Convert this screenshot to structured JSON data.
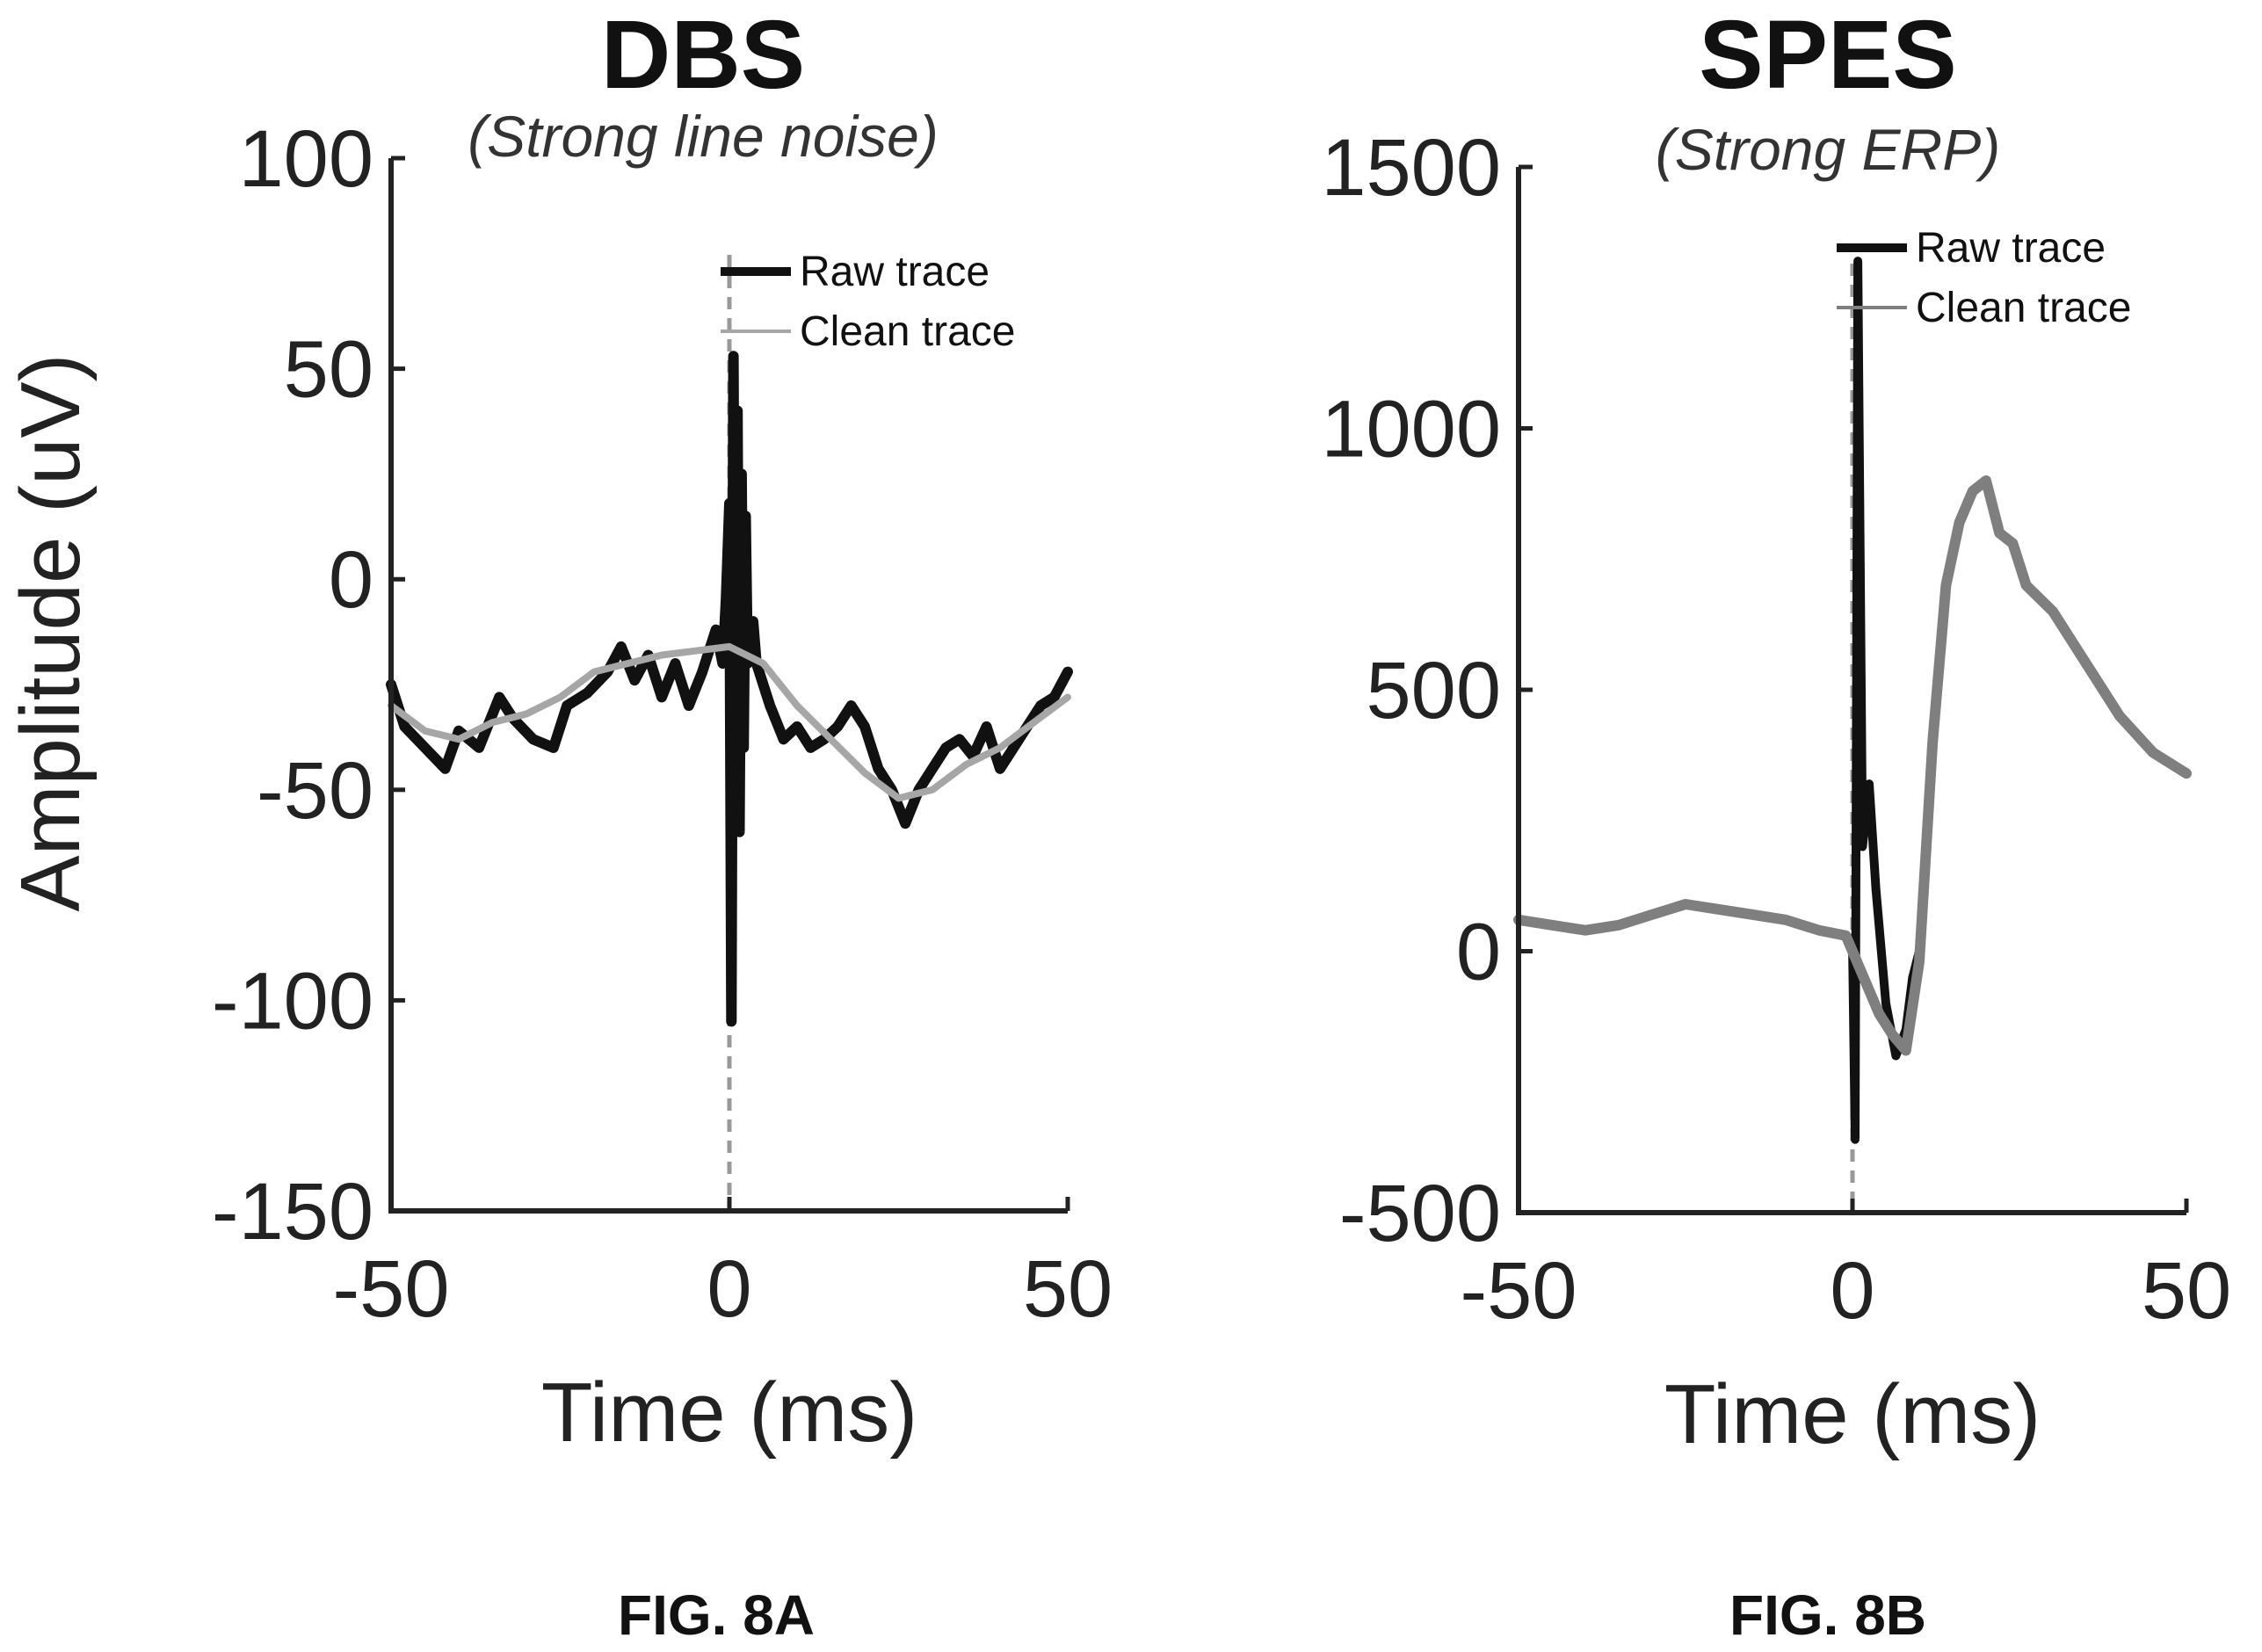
{
  "chart_data": [
    {
      "type": "line",
      "title": "DBS",
      "subtitle": "(Strong line noise)",
      "xlabel": "Time (ms)",
      "ylabel": "Amplitude (uV)",
      "xlim": [
        -50,
        50
      ],
      "ylim": [
        -150,
        100
      ],
      "xticks": [
        "-50",
        "0",
        "50"
      ],
      "yticks": [
        "-150",
        "-100",
        "-50",
        "0",
        "50",
        "100"
      ],
      "legend_placement": "top-right",
      "caption": "FIG. 8A",
      "stim_marker_x": 0,
      "series": [
        {
          "name": "Raw trace",
          "color": "#111111",
          "x": [
            -50,
            -48,
            -45,
            -42,
            -40,
            -37,
            -34,
            -32,
            -29,
            -26,
            -24,
            -21,
            -18,
            -16,
            -14,
            -12,
            -10,
            -8,
            -6,
            -4,
            -2,
            -1,
            -0.5,
            0,
            0.3,
            0.6,
            0.9,
            1.2,
            1.5,
            1.8,
            2.1,
            2.4,
            2.7,
            3,
            3.5,
            4,
            6,
            8,
            10,
            12,
            14,
            16,
            18,
            20,
            22,
            24,
            26,
            28,
            30,
            32,
            34,
            36,
            38,
            40,
            42,
            44,
            46,
            48,
            50
          ],
          "y": [
            -25,
            -35,
            -40,
            -45,
            -36,
            -40,
            -28,
            -33,
            -38,
            -40,
            -30,
            -27,
            -22,
            -16,
            -24,
            -18,
            -28,
            -20,
            -30,
            -22,
            -12,
            -20,
            -5,
            18,
            -105,
            53,
            -55,
            40,
            -60,
            25,
            -40,
            15,
            -20,
            -15,
            -10,
            -20,
            -30,
            -38,
            -35,
            -40,
            -38,
            -35,
            -30,
            -35,
            -45,
            -50,
            -58,
            -50,
            -45,
            -40,
            -38,
            -42,
            -35,
            -45,
            -40,
            -35,
            -30,
            -28,
            -22
          ],
          "values_label": ""
        },
        {
          "name": "Clean trace",
          "color": "#a6a6a6",
          "x": [
            -50,
            -45,
            -40,
            -35,
            -30,
            -25,
            -20,
            -15,
            -10,
            -5,
            0,
            5,
            10,
            15,
            20,
            25,
            30,
            35,
            40,
            45,
            50
          ],
          "y": [
            -30,
            -36,
            -38,
            -34,
            -32,
            -28,
            -22,
            -20,
            -18,
            -17,
            -16,
            -20,
            -30,
            -38,
            -46,
            -52,
            -50,
            -44,
            -40,
            -34,
            -28
          ],
          "values_label": ""
        }
      ]
    },
    {
      "type": "line",
      "title": "SPES",
      "subtitle": "(Strong ERP)",
      "xlabel": "Time (ms)",
      "ylabel": "",
      "xlim": [
        -50,
        50
      ],
      "ylim": [
        -500,
        1500
      ],
      "xticks": [
        "-50",
        "0",
        "50"
      ],
      "yticks": [
        "-500",
        "0",
        "500",
        "1000",
        "1500"
      ],
      "legend_placement": "top-right",
      "caption": "FIG. 8B",
      "stim_marker_x": 0,
      "series": [
        {
          "name": "Raw trace",
          "color": "#111111",
          "x": [
            -50,
            -45,
            -40,
            -35,
            -30,
            -25,
            -20,
            -15,
            -10,
            -5,
            -1,
            0,
            0.4,
            0.8,
            1.5,
            2.5,
            3.5,
            5,
            6.5,
            8,
            9,
            10
          ],
          "y": [
            60,
            50,
            40,
            50,
            70,
            90,
            80,
            70,
            60,
            40,
            30,
            20,
            -360,
            1320,
            200,
            320,
            120,
            -100,
            -200,
            -150,
            -50,
            0
          ],
          "values_label": ""
        },
        {
          "name": "Clean trace",
          "color": "#7f7f7f",
          "x": [
            -50,
            -45,
            -40,
            -35,
            -30,
            -25,
            -20,
            -15,
            -10,
            -5,
            -1,
            0,
            2,
            4,
            6,
            8,
            10,
            12,
            14,
            16,
            18,
            20,
            22,
            24,
            26,
            30,
            35,
            40,
            45,
            50
          ],
          "y": [
            60,
            50,
            40,
            50,
            70,
            90,
            80,
            70,
            60,
            40,
            30,
            0,
            -60,
            -120,
            -160,
            -190,
            -20,
            400,
            700,
            820,
            880,
            900,
            800,
            780,
            700,
            650,
            550,
            450,
            380,
            340
          ],
          "values_label": ""
        }
      ]
    }
  ]
}
